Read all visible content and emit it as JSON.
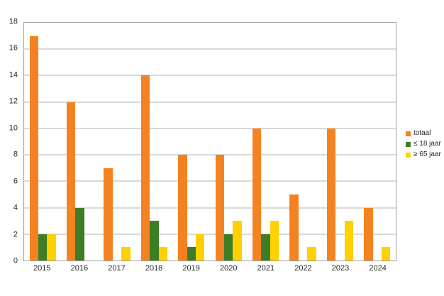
{
  "chart_data": {
    "type": "bar",
    "title": "",
    "categories": [
      "2015",
      "2016",
      "2017",
      "2018",
      "2019",
      "2020",
      "2021",
      "2022",
      "2023",
      "2024"
    ],
    "series": [
      {
        "name": "totaal",
        "key": "totaal",
        "color": "#F58220",
        "values": [
          17,
          12,
          7,
          14,
          8,
          8,
          10,
          5,
          10,
          4
        ]
      },
      {
        "name": "≤ 18 jaar",
        "key": "le-18-jaar",
        "color": "#3C7D25",
        "values": [
          2,
          4,
          0,
          3,
          1,
          2,
          2,
          0,
          0,
          0
        ]
      },
      {
        "name": "≥ 65 jaar",
        "key": "ge-65-jaar",
        "color": "#FFD100",
        "values": [
          2,
          0,
          1,
          1,
          2,
          3,
          3,
          1,
          3,
          1
        ]
      }
    ],
    "xlabel": "",
    "ylabel": "",
    "ylim": [
      0,
      18
    ],
    "y_ticks": [
      0,
      2,
      4,
      6,
      8,
      10,
      12,
      14,
      16,
      18
    ],
    "grid": "horizontal",
    "legend_position": "right",
    "colors": {
      "gridline": "#b3b3b3",
      "axis_border": "#a0a0a0",
      "text": "#262626",
      "background": "#ffffff"
    }
  }
}
